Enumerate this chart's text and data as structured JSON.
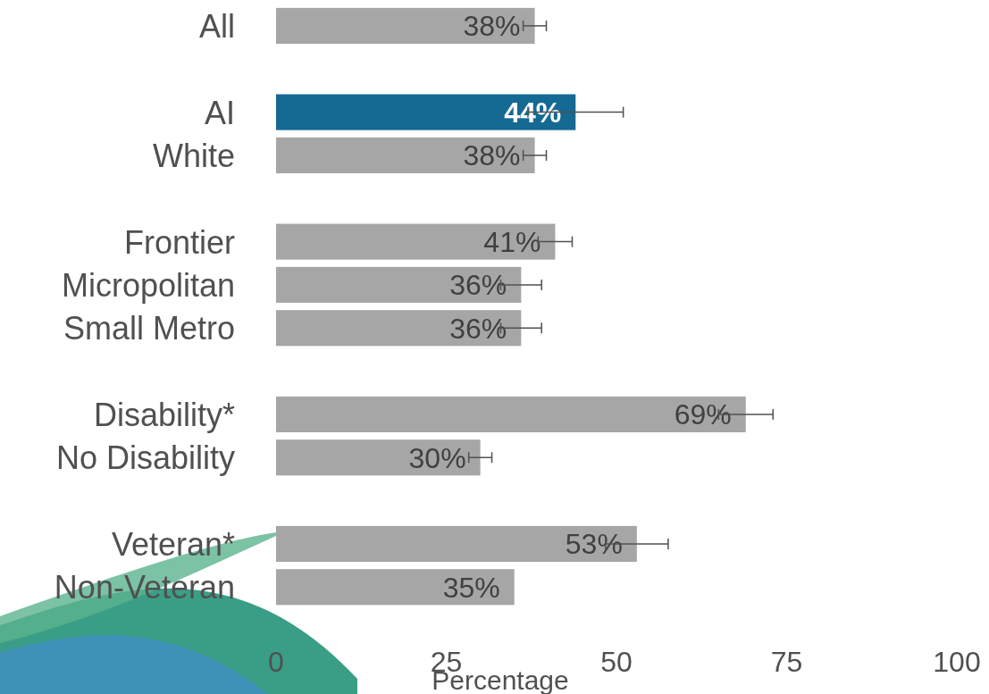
{
  "chart_data": {
    "type": "bar",
    "orientation": "horizontal",
    "xlabel": "Percentage",
    "categories": [
      "All",
      null,
      "AI",
      "White",
      null,
      "Frontier",
      "Micropolitan",
      "Small Metro",
      null,
      "Disability*",
      "No Disability",
      null,
      "Veteran*",
      "Non-Veteran"
    ],
    "values": [
      38,
      null,
      44,
      38,
      null,
      41,
      36,
      36,
      null,
      69,
      30,
      null,
      53,
      35
    ],
    "value_labels": [
      "38%",
      null,
      "44%",
      "38%",
      null,
      "41%",
      "36%",
      "36%",
      null,
      "69%",
      "30%",
      null,
      "53%",
      "35%"
    ],
    "errors": [
      1.7,
      null,
      7,
      1.7,
      null,
      2.5,
      3,
      3,
      null,
      4,
      1.7,
      null,
      4.6,
      null
    ],
    "colors": [
      "#a6a6a6",
      null,
      "#156a93",
      "#a6a6a6",
      null,
      "#a6a6a6",
      "#a6a6a6",
      "#a6a6a6",
      null,
      "#a6a6a6",
      "#a6a6a6",
      null,
      "#a6a6a6",
      "#a6a6a6"
    ],
    "xlim": [
      0,
      100
    ],
    "xticks": [
      0,
      25,
      50,
      75,
      100
    ],
    "grid": false
  }
}
